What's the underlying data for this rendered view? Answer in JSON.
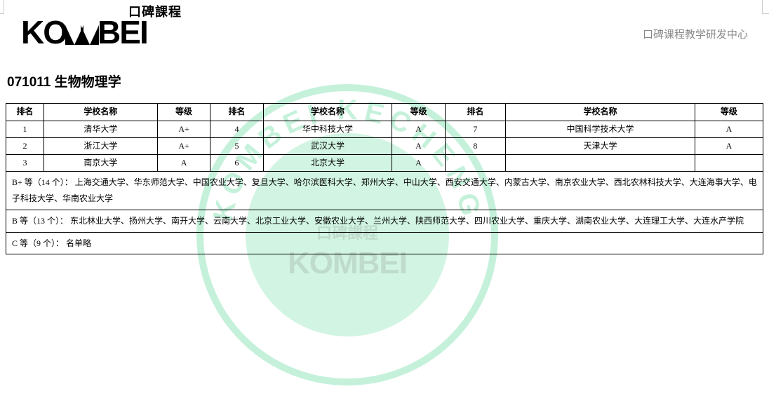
{
  "brand": {
    "top_text": "口碑課程",
    "logo_text": "KOMBEI",
    "logo_letters": [
      "K",
      "O",
      "A",
      "A",
      "B",
      "E",
      "I"
    ]
  },
  "subtitle": "口碑课程教学研发中心",
  "heading": "071011 生物物理学",
  "watermark": {
    "ring_color": "#5bd89a",
    "inner_color": "#7fe3b0",
    "text_top": "KOMBEI KECHENG",
    "text_cn_top": "口碑課程",
    "text_logo": "KOMBEI"
  },
  "table": {
    "headers": {
      "rank": "排名",
      "name": "学校名称",
      "grade": "等级"
    },
    "rows": [
      {
        "r1": "1",
        "n1": "清华大学",
        "g1": "A+",
        "r2": "4",
        "n2": "华中科技大学",
        "g2": "A",
        "r3": "7",
        "n3": "中国科学技术大学",
        "g3": "A"
      },
      {
        "r1": "2",
        "n1": "浙江大学",
        "g1": "A+",
        "r2": "5",
        "n2": "武汉大学",
        "g2": "A",
        "r3": "8",
        "n3": "天津大学",
        "g3": "A"
      },
      {
        "r1": "3",
        "n1": "南京大学",
        "g1": "A",
        "r2": "6",
        "n2": "北京大学",
        "g2": "A",
        "r3": "",
        "n3": "",
        "g3": ""
      }
    ],
    "notes": [
      "B+ 等（14 个）： 上海交通大学、华东师范大学、中国农业大学、复旦大学、哈尔滨医科大学、郑州大学、中山大学、西安交通大学、内蒙古大学、南京农业大学、西北农林科技大学、大连海事大学、电子科技大学、华南农业大学",
      "B 等（13 个）： 东北林业大学、扬州大学、南开大学、云南大学、北京工业大学、安徽农业大学、兰州大学、陕西师范大学、四川农业大学、重庆大学、湖南农业大学、大连理工大学、大连水产学院",
      "C 等（9 个）： 名单略"
    ],
    "col_widths": [
      "5%",
      "15%",
      "7%",
      "7%",
      "17%",
      "7%",
      "8%",
      "25%",
      "9%"
    ]
  }
}
